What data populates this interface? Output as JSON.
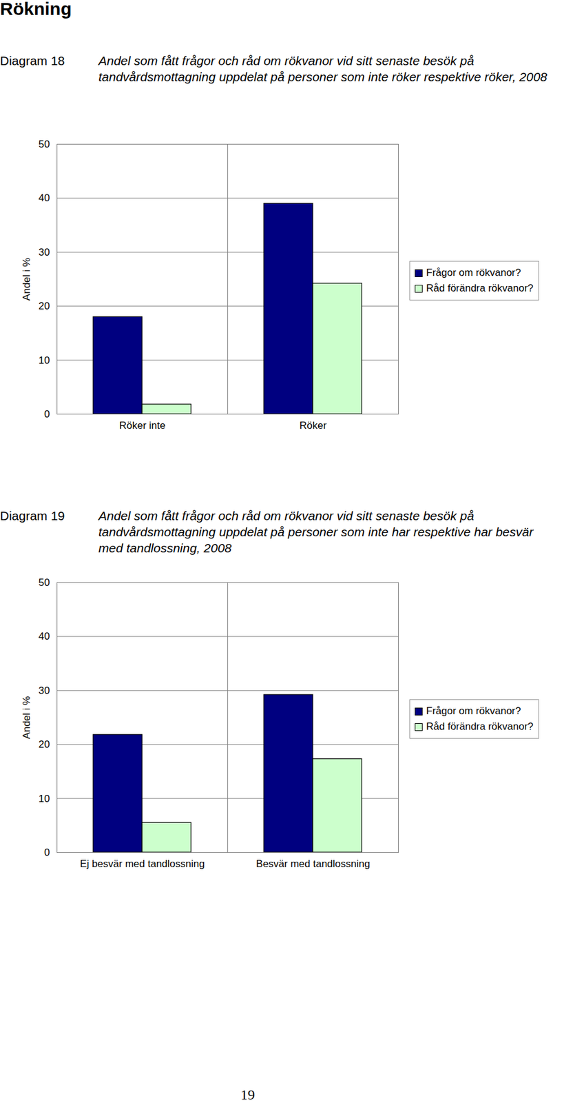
{
  "heading": "Rökning",
  "page_number": "19",
  "chart_data": [
    {
      "type": "bar",
      "figure_label": "Diagram 18",
      "title": "Andel som fått frågor och råd om rökvanor vid sitt senaste besök på tandvårdsmottagning uppdelat på personer som inte röker respektive röker, 2008",
      "y_label": "Andel i %",
      "categories": [
        "Röker inte",
        "Röker"
      ],
      "series": [
        {
          "name": "Frågor om rökvanor?",
          "color": "#000080",
          "values": [
            18,
            39
          ]
        },
        {
          "name": "Råd förändra rökvanor?",
          "color": "#ccffcc",
          "values": [
            1.8,
            24.2
          ]
        }
      ],
      "ylim": [
        0,
        50
      ],
      "yticks": [
        0,
        10,
        20,
        30,
        40,
        50
      ],
      "grid": true,
      "legend": "right"
    },
    {
      "type": "bar",
      "figure_label": "Diagram 19",
      "title": "Andel som fått frågor och råd om rökvanor vid sitt senaste besök på tandvårdsmottagning uppdelat på personer som inte har respektive har besvär med tandlossning, 2008",
      "y_label": "Andel i %",
      "categories": [
        "Ej besvär med tandlossning",
        "Besvär med tandlossning"
      ],
      "series": [
        {
          "name": "Frågor om rökvanor?",
          "color": "#000080",
          "values": [
            21.8,
            29.2
          ]
        },
        {
          "name": "Råd förändra rökvanor?",
          "color": "#ccffcc",
          "values": [
            5.5,
            17.3
          ]
        }
      ],
      "ylim": [
        0,
        50
      ],
      "yticks": [
        0,
        10,
        20,
        30,
        40,
        50
      ],
      "grid": true,
      "legend": "right"
    }
  ]
}
